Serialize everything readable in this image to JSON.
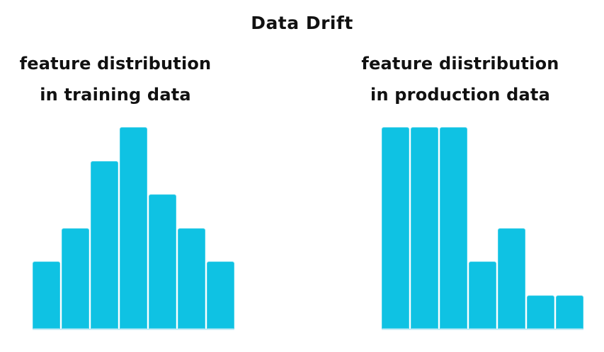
{
  "title": "Data Drift",
  "colors": {
    "background": "#FFFFFF",
    "text": "#111111",
    "bar": "#0FC2E3",
    "bar_edge": "#C6ECF6"
  },
  "chart_data": [
    {
      "type": "bar",
      "title": "feature distribution in training data",
      "subtitle_line1": "feature distribution",
      "subtitle_line2": "in training data",
      "values": [
        2,
        3,
        5,
        6,
        4,
        3,
        2
      ],
      "xlabel": "",
      "ylabel": "",
      "ylim": [
        0,
        6
      ],
      "grid": false,
      "legend": "none",
      "axes_hidden": true,
      "bar_color": "#0FC2E3"
    },
    {
      "type": "bar",
      "title": "feature diistribution in production data",
      "subtitle_line1": "feature diistribution",
      "subtitle_line2": "in production data",
      "values": [
        6,
        6,
        6,
        2,
        3,
        1,
        1
      ],
      "xlabel": "",
      "ylabel": "",
      "ylim": [
        0,
        6
      ],
      "grid": false,
      "legend": "none",
      "axes_hidden": true,
      "bar_color": "#0FC2E3"
    }
  ]
}
